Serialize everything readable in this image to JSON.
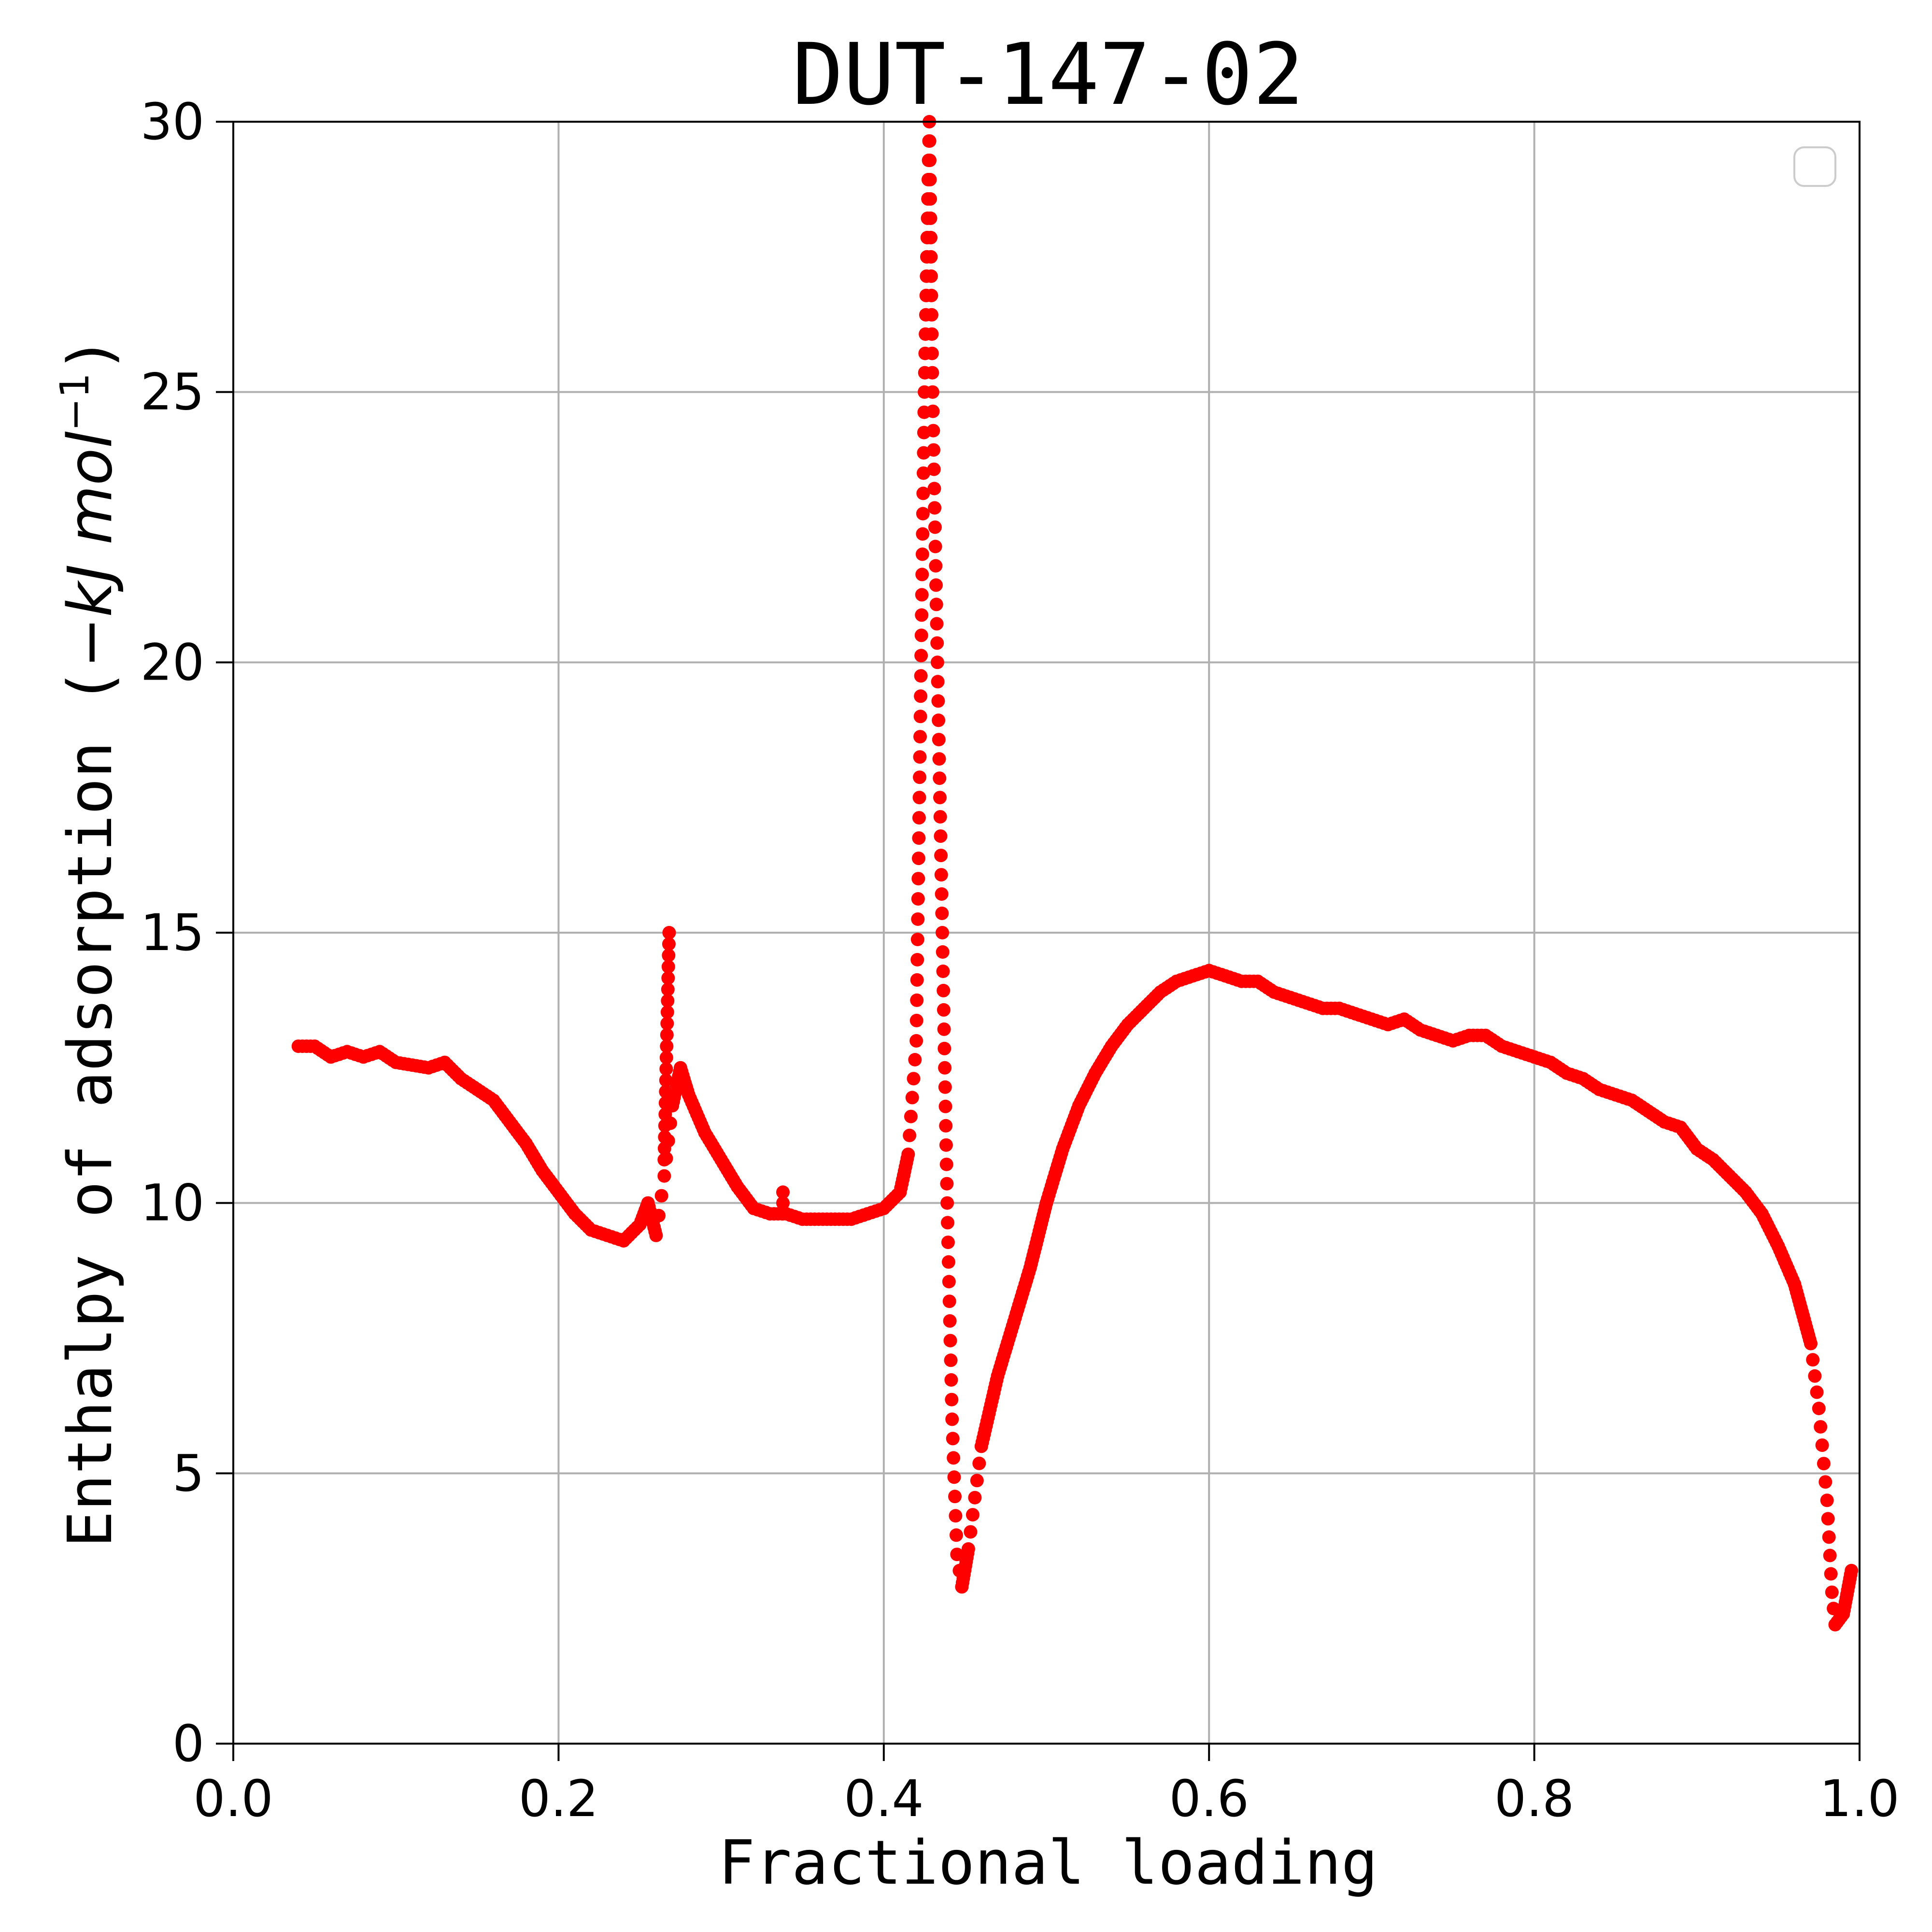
{
  "chart_data": {
    "type": "scatter",
    "title": "DUT-147-02",
    "xlabel": "Fractional loading",
    "ylabel": "Enthalpy of adsorption (−kJ mol⁻¹)",
    "ylabel_prefix": "Enthalpy of adsorption (",
    "ylabel_units": "−kJ mol",
    "ylabel_sup": "−1",
    "ylabel_suffix": ")",
    "xlim": [
      0.0,
      1.0
    ],
    "ylim": [
      0,
      30
    ],
    "x_ticks": [
      "0.0",
      "0.2",
      "0.4",
      "0.6",
      "0.8",
      "1.0"
    ],
    "y_ticks": [
      "0",
      "5",
      "10",
      "15",
      "20",
      "25",
      "30"
    ],
    "grid": true,
    "legend": "top-right (empty)",
    "marker_color": "#ff0000",
    "series": [
      {
        "points": [
          [
            0.04,
            12.9
          ],
          [
            0.05,
            12.9
          ],
          [
            0.06,
            12.7
          ],
          [
            0.07,
            12.8
          ],
          [
            0.08,
            12.7
          ],
          [
            0.09,
            12.8
          ],
          [
            0.1,
            12.6
          ],
          [
            0.12,
            12.5
          ],
          [
            0.13,
            12.6
          ],
          [
            0.14,
            12.3
          ],
          [
            0.15,
            12.1
          ],
          [
            0.16,
            11.9
          ],
          [
            0.17,
            11.5
          ],
          [
            0.18,
            11.1
          ],
          [
            0.19,
            10.6
          ],
          [
            0.2,
            10.2
          ],
          [
            0.21,
            9.8
          ],
          [
            0.22,
            9.5
          ],
          [
            0.23,
            9.4
          ],
          [
            0.24,
            9.3
          ],
          [
            0.25,
            9.6
          ],
          [
            0.255,
            10.0
          ],
          [
            0.26,
            9.4
          ],
          [
            0.265,
            10.5
          ],
          [
            0.27,
            11.8
          ],
          [
            0.275,
            12.5
          ],
          [
            0.28,
            12.0
          ],
          [
            0.29,
            11.3
          ],
          [
            0.3,
            10.8
          ],
          [
            0.31,
            10.3
          ],
          [
            0.32,
            9.9
          ],
          [
            0.33,
            9.8
          ],
          [
            0.34,
            9.8
          ],
          [
            0.35,
            9.7
          ],
          [
            0.36,
            9.7
          ],
          [
            0.37,
            9.7
          ],
          [
            0.38,
            9.7
          ],
          [
            0.39,
            9.8
          ],
          [
            0.4,
            9.9
          ],
          [
            0.41,
            10.2
          ],
          [
            0.415,
            10.9
          ],
          [
            0.42,
            13.0
          ],
          [
            0.425,
            25.0
          ],
          [
            0.428,
            30.0
          ],
          [
            0.43,
            25.0
          ],
          [
            0.433,
            20.0
          ],
          [
            0.436,
            15.0
          ],
          [
            0.439,
            10.0
          ],
          [
            0.442,
            6.0
          ],
          [
            0.445,
            3.5
          ],
          [
            0.448,
            2.9
          ],
          [
            0.452,
            3.6
          ],
          [
            0.46,
            5.5
          ],
          [
            0.47,
            6.8
          ],
          [
            0.48,
            7.8
          ],
          [
            0.49,
            8.8
          ],
          [
            0.5,
            10.0
          ],
          [
            0.51,
            11.0
          ],
          [
            0.52,
            11.8
          ],
          [
            0.53,
            12.4
          ],
          [
            0.54,
            12.9
          ],
          [
            0.55,
            13.3
          ],
          [
            0.56,
            13.6
          ],
          [
            0.57,
            13.9
          ],
          [
            0.58,
            14.1
          ],
          [
            0.59,
            14.2
          ],
          [
            0.6,
            14.3
          ],
          [
            0.61,
            14.2
          ],
          [
            0.62,
            14.1
          ],
          [
            0.63,
            14.1
          ],
          [
            0.64,
            13.9
          ],
          [
            0.65,
            13.8
          ],
          [
            0.66,
            13.7
          ],
          [
            0.67,
            13.6
          ],
          [
            0.68,
            13.6
          ],
          [
            0.69,
            13.5
          ],
          [
            0.7,
            13.4
          ],
          [
            0.71,
            13.3
          ],
          [
            0.72,
            13.4
          ],
          [
            0.73,
            13.2
          ],
          [
            0.74,
            13.1
          ],
          [
            0.75,
            13.0
          ],
          [
            0.76,
            13.1
          ],
          [
            0.77,
            13.1
          ],
          [
            0.78,
            12.9
          ],
          [
            0.79,
            12.8
          ],
          [
            0.8,
            12.7
          ],
          [
            0.81,
            12.6
          ],
          [
            0.82,
            12.4
          ],
          [
            0.83,
            12.3
          ],
          [
            0.84,
            12.1
          ],
          [
            0.85,
            12.0
          ],
          [
            0.86,
            11.9
          ],
          [
            0.87,
            11.7
          ],
          [
            0.88,
            11.5
          ],
          [
            0.89,
            11.4
          ],
          [
            0.9,
            11.0
          ],
          [
            0.91,
            10.8
          ],
          [
            0.92,
            10.5
          ],
          [
            0.93,
            10.2
          ],
          [
            0.94,
            9.8
          ],
          [
            0.95,
            9.2
          ],
          [
            0.96,
            8.5
          ],
          [
            0.97,
            7.4
          ],
          [
            0.975,
            6.2
          ],
          [
            0.98,
            4.5
          ],
          [
            0.983,
            2.8
          ],
          [
            0.985,
            2.2
          ],
          [
            0.99,
            2.4
          ],
          [
            0.995,
            3.2
          ]
        ],
        "spikes": [
          {
            "x_start": 0.265,
            "x_end": 0.268,
            "y_peak": 15.0,
            "base": 10.8
          },
          {
            "x_start": 0.338,
            "x_end": 0.338,
            "y_peak": 10.2,
            "base": 9.8
          }
        ]
      }
    ]
  }
}
